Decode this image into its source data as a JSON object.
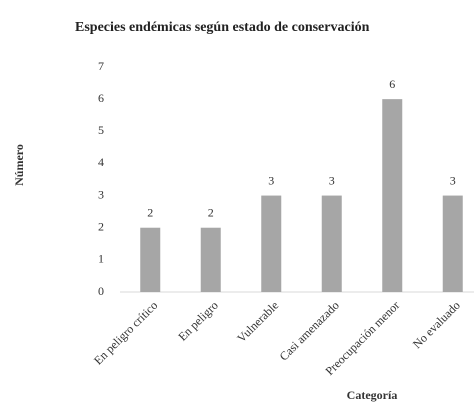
{
  "chart_data": {
    "type": "bar",
    "title": "Especies endémicas según estado de conservación",
    "x_label": "Categoría",
    "y_label": "Número",
    "categories": [
      "En peligro crítico",
      "En peligro",
      "Vulnerable",
      "Casi amenazado",
      "Preocupación menor",
      "No evaluado"
    ],
    "values": [
      2,
      2,
      3,
      3,
      6,
      3
    ],
    "color": "#a6a6a6",
    "ylim": [
      0,
      7
    ],
    "yticks": [
      0,
      1,
      2,
      3,
      4,
      5,
      6,
      7
    ],
    "grid": false
  }
}
